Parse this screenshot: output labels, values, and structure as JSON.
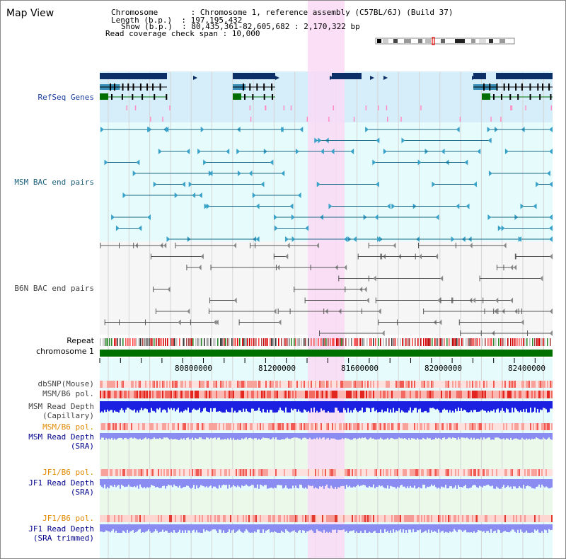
{
  "view": {
    "title": "Map View",
    "info_lines": [
      "Chromosome       : Chromosome 1, reference assembly (C57BL/6J) (Build 37)",
      "Length (b.p.)  : 197,195,432",
      "Show (b.p.)  : 80,435,361-82,605,682 : 2,170,322 bp",
      "Read coverage check span : 10,000"
    ]
  },
  "tracks": {
    "refseq": "RefSeq Genes",
    "msm_bac": "MSM BAC end pairs",
    "b6n_bac": "B6N BAC end pairs",
    "repeat": "Repeat",
    "chromosome": "chromosome 1",
    "dbsnp": "dbSNP(Mouse)",
    "msm_b6_pol_1": "MSM/B6 pol.",
    "msm_depth_cap_1": "MSM Read Depth",
    "msm_depth_cap_2": "(Capillary)",
    "msm_b6_pol_2": "MSM/B6 pol.",
    "msm_depth_sra_1": "MSM Read Depth",
    "msm_depth_sra_2": "(SRA)",
    "jf1_b6_pol_1": "JF1/B6 pol.",
    "jf1_depth_sra_1": "JF1 Read Depth",
    "jf1_depth_sra_2": "(SRA)",
    "jf1_b6_pol_2": "JF1/B6 pol.",
    "jf1_depth_trim_1": "JF1 Read Depth",
    "jf1_depth_trim_2": "(SRA trimmed)"
  },
  "axis": {
    "ticks": [
      "80800000",
      "81200000",
      "81600000",
      "82000000",
      "82400000"
    ]
  },
  "colors": {
    "highlight": "#f9d9f4",
    "refseq_bg": "#d6eefa",
    "msm_bg": "#e6fbfb",
    "b6n_bg": "#f6f6f6",
    "gene_dark": "#0b2f66",
    "chromosome": "#007000",
    "depth_dark": "#1c20e0",
    "depth_light": "#8a8cf2"
  }
}
